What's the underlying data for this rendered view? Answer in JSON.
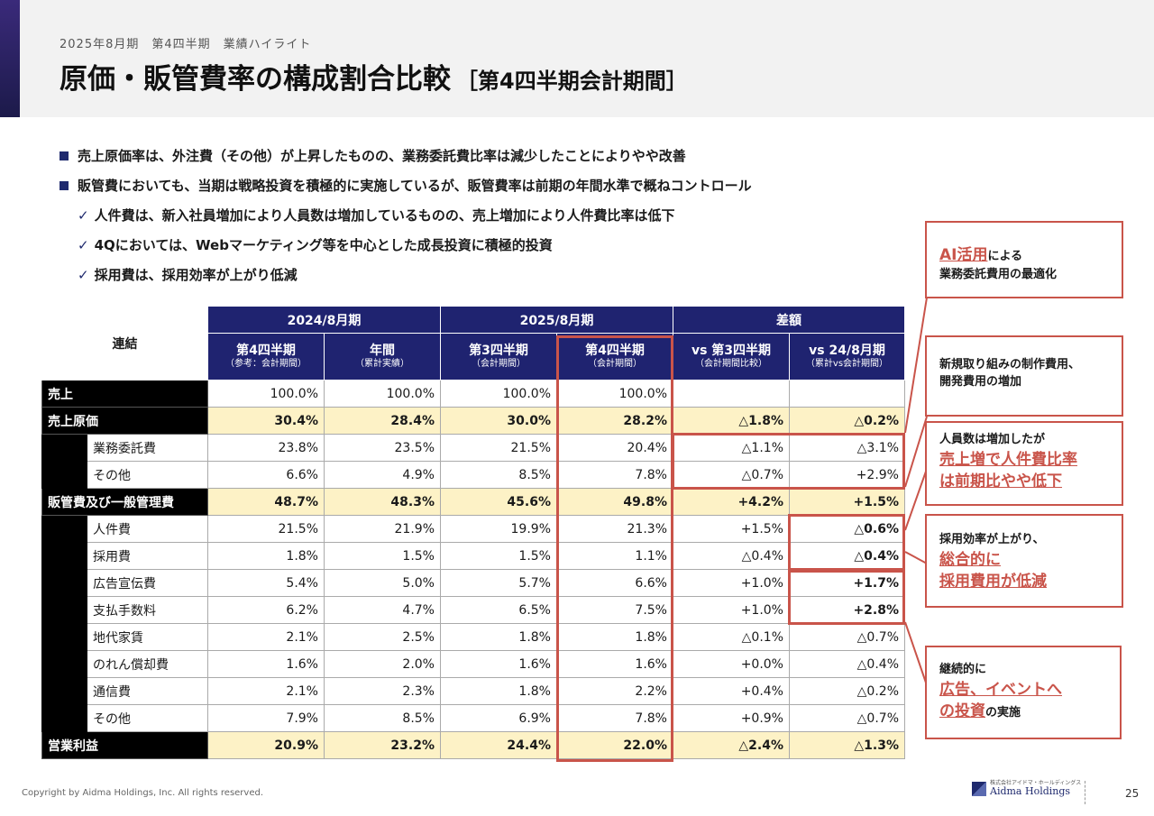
{
  "header": {
    "subtitle": "2025年8月期　第4四半期　業績ハイライト",
    "title": "原価・販管費率の構成割合比較",
    "title_sub": "［第4四半期会計期間］"
  },
  "bullets": [
    "売上原価率は、外注費（その他）が上昇したものの、業務委託費比率は減少したことによりやや改善",
    "販管費においても、当期は戦略投資を積極的に実施しているが、販管費率は前期の年間水準で概ねコントロール"
  ],
  "checks": [
    "人件費は、新入社員増加により人員数は増加しているものの、売上増加により人件費比率は低下",
    "4Qにおいては、Webマーケティング等を中心とした成長投資に積極的投資",
    "採用費は、採用効率が上がり低減"
  ],
  "table": {
    "corner": "連結",
    "groups": [
      "2024/8月期",
      "2025/8月期",
      "差額"
    ],
    "cols": [
      {
        "main": "第4四半期",
        "sub": "（参考：会計期間）"
      },
      {
        "main": "年間",
        "sub": "（累計実績）"
      },
      {
        "main": "第3四半期",
        "sub": "（会計期間）"
      },
      {
        "main": "第4四半期",
        "sub": "（会計期間）"
      },
      {
        "main": "vs 第3四半期",
        "sub": "（会計期間比較）"
      },
      {
        "main": "vs 24/8月期",
        "sub": "（累計vs会計期間）"
      }
    ],
    "rows": [
      {
        "label": "売上",
        "type": "main",
        "values": [
          "100.0%",
          "100.0%",
          "100.0%",
          "100.0%",
          "",
          ""
        ]
      },
      {
        "label": "売上原価",
        "type": "hl",
        "values": [
          "30.4%",
          "28.4%",
          "30.0%",
          "28.2%",
          "△1.8%",
          "△0.2%"
        ]
      },
      {
        "label": "業務委託費",
        "type": "sub-mid",
        "values": [
          "23.8%",
          "23.5%",
          "21.5%",
          "20.4%",
          "△1.1%",
          "△3.1%"
        ]
      },
      {
        "label": "その他",
        "type": "sub-mid",
        "values": [
          "6.6%",
          "4.9%",
          "8.5%",
          "7.8%",
          "△0.7%",
          "+2.9%"
        ]
      },
      {
        "label": "販管費及び一般管理費",
        "type": "hl",
        "values": [
          "48.7%",
          "48.3%",
          "45.6%",
          "49.8%",
          "+4.2%",
          "+1.5%"
        ]
      },
      {
        "label": "人件費",
        "type": "sub-sm",
        "values": [
          "21.5%",
          "21.9%",
          "19.9%",
          "21.3%",
          "+1.5%",
          "△0.6%"
        ],
        "bold_last": true
      },
      {
        "label": "採用費",
        "type": "sub-sm",
        "values": [
          "1.8%",
          "1.5%",
          "1.5%",
          "1.1%",
          "△0.4%",
          "△0.4%"
        ],
        "bold_last": true
      },
      {
        "label": "広告宣伝費",
        "type": "sub-sm",
        "values": [
          "5.4%",
          "5.0%",
          "5.7%",
          "6.6%",
          "+1.0%",
          "+1.7%"
        ],
        "bold_last": true
      },
      {
        "label": "支払手数料",
        "type": "sub-sm",
        "values": [
          "6.2%",
          "4.7%",
          "6.5%",
          "7.5%",
          "+1.0%",
          "+2.8%"
        ],
        "bold_last": true
      },
      {
        "label": "地代家賃",
        "type": "sub-sm",
        "values": [
          "2.1%",
          "2.5%",
          "1.8%",
          "1.8%",
          "△0.1%",
          "△0.7%"
        ]
      },
      {
        "label": "のれん償却費",
        "type": "sub-sm",
        "values": [
          "1.6%",
          "2.0%",
          "1.6%",
          "1.6%",
          "+0.0%",
          "△0.4%"
        ]
      },
      {
        "label": "通信費",
        "type": "sub-sm",
        "values": [
          "2.1%",
          "2.3%",
          "1.8%",
          "2.2%",
          "+0.4%",
          "△0.2%"
        ]
      },
      {
        "label": "その他",
        "type": "sub-sm",
        "values": [
          "7.9%",
          "8.5%",
          "6.9%",
          "7.8%",
          "+0.9%",
          "△0.7%"
        ]
      },
      {
        "label": "営業利益",
        "type": "hl",
        "values": [
          "20.9%",
          "23.2%",
          "24.4%",
          "22.0%",
          "△2.4%",
          "△1.3%"
        ]
      }
    ]
  },
  "callouts": [
    {
      "red": "AI活用",
      "pre": "",
      "post": "による",
      "line2": "業務委託費用の最適化"
    },
    {
      "plain": "新規取り組みの制作費用、",
      "plain2": "開発費用の増加"
    },
    {
      "plain": "人員数は増加したが",
      "red1": "売上増で人件費比率",
      "red2": "は前期比やや低下"
    },
    {
      "plain": "採用効率が上がり、",
      "red1": "総合的に",
      "red2": "採用費用が低減"
    },
    {
      "plain": "継続的に",
      "red1": "広告、イベントへ",
      "red2": "の投資",
      "post": "の実施"
    }
  ],
  "footer": {
    "copyright": "Copyright by Aidma Holdings, Inc. All rights reserved.",
    "logo_small": "株式会社アイドマ・ホールディングス",
    "logo": "Aidma Holdings",
    "page": "25"
  },
  "colors": {
    "navy": "#1f2370",
    "accent_red": "#c9544a",
    "highlight": "#fdf2c6"
  }
}
